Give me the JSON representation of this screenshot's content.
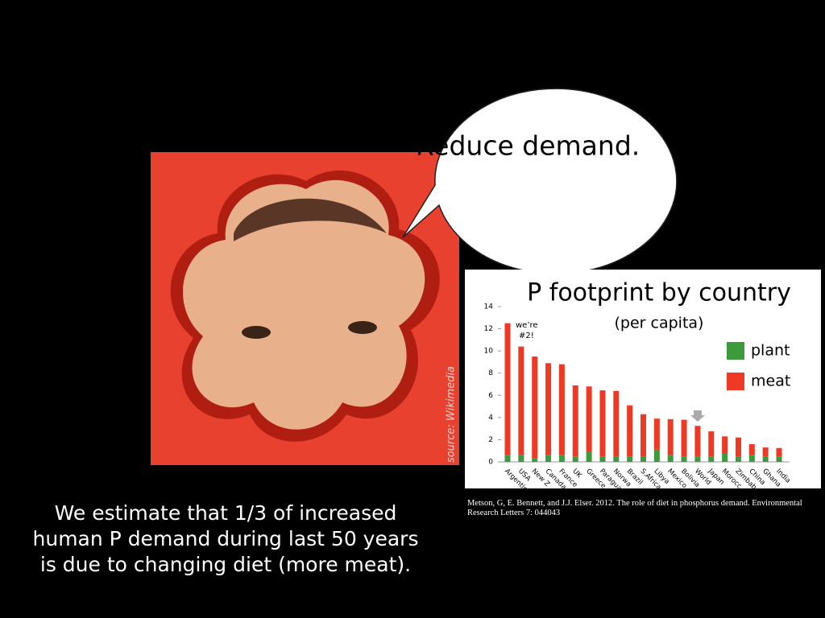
{
  "slide": {
    "bubble_text": "Reduce demand.",
    "photo_credit": "source:  Wikimedia",
    "citation": "Metson, G, E. Bennett, and J.J. Elser. 2012. The role of diet in phosphorus demand. Environmental Research Letters 7: 044043",
    "caption": [
      "We estimate that 1/3 of increased",
      "human P demand during last 50 years",
      "is due to changing diet (more meat)."
    ]
  },
  "chart_data": {
    "type": "bar",
    "stacked": true,
    "title": "P footprint by country",
    "subtitle": "(per capita)",
    "annotation": [
      "we’re",
      "#2!"
    ],
    "categories": [
      "Argentin",
      "USA",
      "New Z",
      "Canada",
      "France",
      "UK",
      "Greece",
      "Paragua",
      "Norwa",
      "Brazil",
      "S.Africa",
      "Libya",
      "Mexico",
      "Bolivia",
      "World",
      "Japan",
      "Morocc",
      "Zimbab",
      "China",
      "Ghana",
      "India"
    ],
    "series": [
      {
        "name": "plant",
        "color": "#3c9a3c",
        "values": [
          0.6,
          0.6,
          0.3,
          0.6,
          0.6,
          0.5,
          0.9,
          0.5,
          0.5,
          0.5,
          0.5,
          1.1,
          0.6,
          0.5,
          0.5,
          0.5,
          0.8,
          0.5,
          0.6,
          0.5,
          0.5
        ]
      },
      {
        "name": "meat",
        "color": "#ee3a24",
        "values": [
          11.9,
          9.8,
          9.2,
          8.3,
          8.2,
          6.4,
          5.9,
          5.95,
          5.9,
          4.6,
          3.8,
          2.8,
          3.25,
          3.3,
          2.75,
          2.25,
          1.5,
          1.7,
          1.0,
          0.8,
          0.75
        ]
      }
    ],
    "ylim": [
      0,
      14
    ],
    "yticks": [
      0,
      2,
      4,
      6,
      8,
      10,
      12,
      14
    ],
    "legend": "right"
  }
}
